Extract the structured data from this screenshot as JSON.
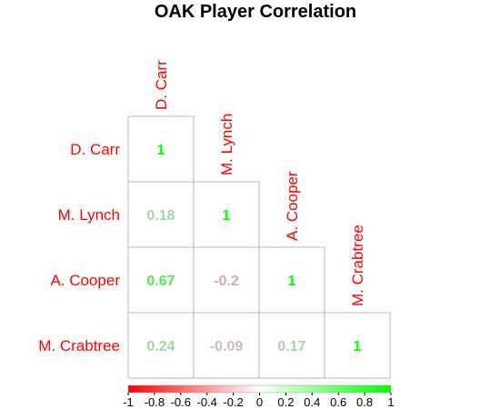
{
  "chart_data": {
    "type": "heatmap",
    "title": "OAK Player Correlation",
    "variables": [
      "D. Carr",
      "M. Lynch",
      "A. Cooper",
      "M. Crabtree"
    ],
    "layout": "lower-triangular",
    "cells": [
      {
        "row": "D. Carr",
        "col": "D. Carr",
        "value": 1,
        "label": "1"
      },
      {
        "row": "M. Lynch",
        "col": "D. Carr",
        "value": 0.18,
        "label": "0.18"
      },
      {
        "row": "M. Lynch",
        "col": "M. Lynch",
        "value": 1,
        "label": "1"
      },
      {
        "row": "A. Cooper",
        "col": "D. Carr",
        "value": 0.67,
        "label": "0.67"
      },
      {
        "row": "A. Cooper",
        "col": "M. Lynch",
        "value": -0.2,
        "label": "-0.2"
      },
      {
        "row": "A. Cooper",
        "col": "A. Cooper",
        "value": 1,
        "label": "1"
      },
      {
        "row": "M. Crabtree",
        "col": "D. Carr",
        "value": 0.24,
        "label": "0.24"
      },
      {
        "row": "M. Crabtree",
        "col": "M. Lynch",
        "value": -0.09,
        "label": "-0.09"
      },
      {
        "row": "M. Crabtree",
        "col": "A. Cooper",
        "value": 0.17,
        "label": "0.17"
      },
      {
        "row": "M. Crabtree",
        "col": "M. Crabtree",
        "value": 1,
        "label": "1"
      }
    ],
    "colorbar": {
      "range": [
        -1,
        1
      ],
      "ticks": [
        "-1",
        "-0.8",
        "-0.6",
        "-0.4",
        "-0.2",
        "0",
        "0.2",
        "0.4",
        "0.6",
        "0.8",
        "1"
      ],
      "colors": {
        "negative": "#ff0000",
        "zero": "#ffffff",
        "positive": "#00ff00"
      }
    },
    "label_color": "#ff0000",
    "grid": true
  }
}
